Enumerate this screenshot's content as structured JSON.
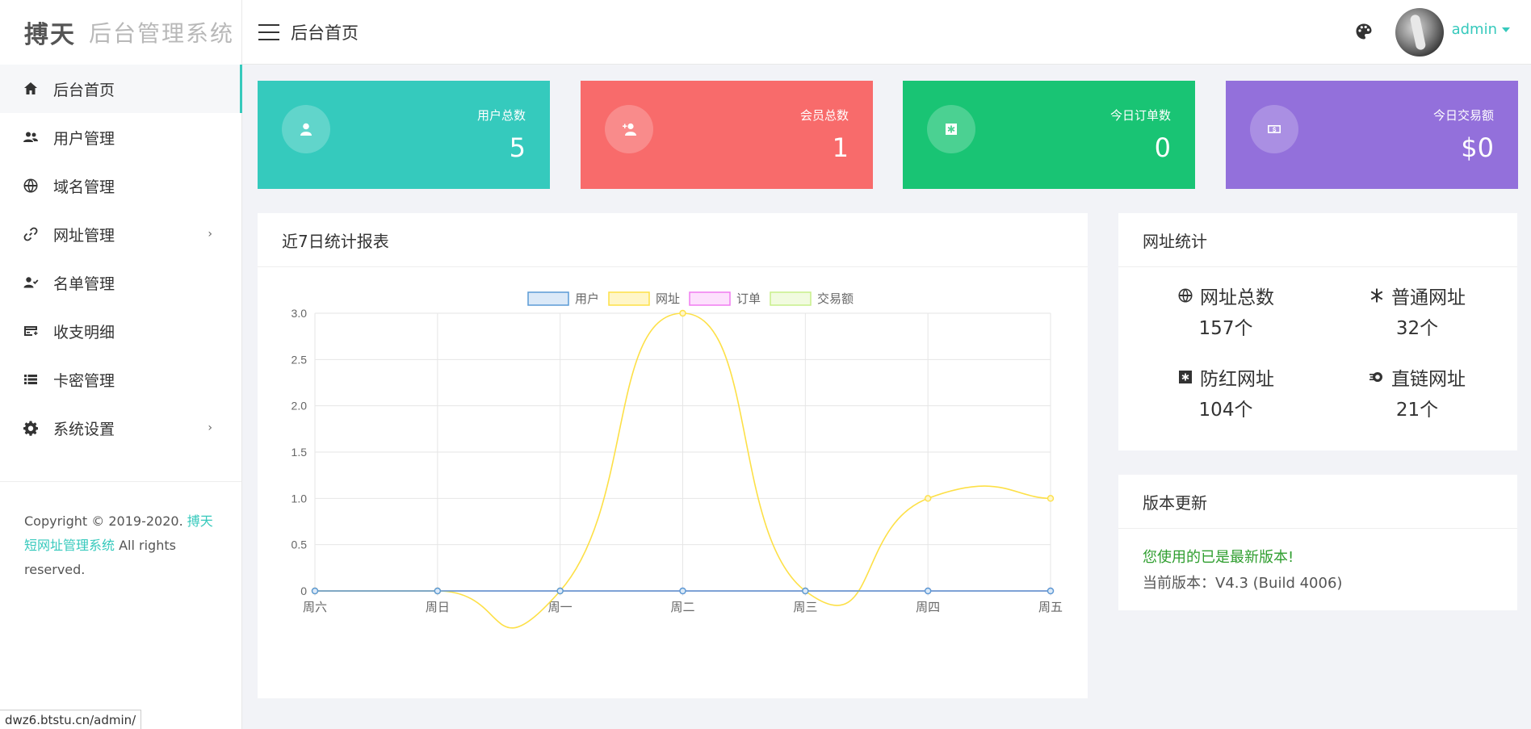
{
  "app": {
    "logo_main": "搏天",
    "logo_sub": "后台管理系统"
  },
  "sidebar": {
    "items": [
      {
        "label": "后台首页",
        "icon": "home-icon",
        "active": true
      },
      {
        "label": "用户管理",
        "icon": "users-icon"
      },
      {
        "label": "域名管理",
        "icon": "globe-icon"
      },
      {
        "label": "网址管理",
        "icon": "link-icon",
        "has_submenu": true
      },
      {
        "label": "名单管理",
        "icon": "user-check-icon"
      },
      {
        "label": "收支明细",
        "icon": "credit-card-icon"
      },
      {
        "label": "卡密管理",
        "icon": "list-icon"
      },
      {
        "label": "系统设置",
        "icon": "gear-icon",
        "has_submenu": true
      }
    ],
    "arrow": "›",
    "copyright_prefix": "Copyright © 2019-2020. ",
    "copyright_link": "搏天短网址管理系统",
    "copyright_suffix": " All rights reserved."
  },
  "header": {
    "title": "后台首页",
    "username": "admin"
  },
  "stats": [
    {
      "label": "用户总数",
      "value": "5",
      "color": "#35cabd",
      "icon": "user-icon"
    },
    {
      "label": "会员总数",
      "value": "1",
      "color": "#f86b6b",
      "icon": "user-plus-icon"
    },
    {
      "label": "今日订单数",
      "value": "0",
      "color": "#19c474",
      "icon": "asterisk-square-icon"
    },
    {
      "label": "今日交易额",
      "value": "$0",
      "color": "#9370db",
      "icon": "money-icon"
    }
  ],
  "chart_panel": {
    "title": "近7日统计报表"
  },
  "chart_data": {
    "type": "line",
    "categories": [
      "周六",
      "周日",
      "周一",
      "周二",
      "周三",
      "周四",
      "周五"
    ],
    "series": [
      {
        "name": "用户",
        "values": [
          0,
          0,
          0,
          0,
          0,
          0,
          0
        ],
        "color": "#5b9bd5",
        "fill": "#dbe9f8"
      },
      {
        "name": "网址",
        "values": [
          0,
          0,
          0,
          3,
          0,
          1,
          1
        ],
        "color": "#fde047",
        "fill": "#fff6c8"
      },
      {
        "name": "订单",
        "values": [
          0,
          0,
          0,
          0,
          0,
          0,
          0
        ],
        "color": "#f07cf0",
        "fill": "#fde0fd"
      },
      {
        "name": "交易额",
        "values": [
          0,
          0,
          0,
          0,
          0,
          0,
          0
        ],
        "color": "#c7ef8a",
        "fill": "#f1fbdf"
      }
    ],
    "yticks": [
      "0",
      "0.5",
      "1.0",
      "1.5",
      "2.0",
      "2.5",
      "3.0"
    ],
    "ylim": [
      0,
      3
    ],
    "grid": true,
    "legend_position": "top-center"
  },
  "url_stats": {
    "title": "网址统计",
    "items": [
      {
        "label": "网址总数",
        "value": "157个",
        "icon": "globe-icon"
      },
      {
        "label": "普通网址",
        "value": "32个",
        "icon": "asterisk-icon"
      },
      {
        "label": "防红网址",
        "value": "104个",
        "icon": "asterisk-square-icon"
      },
      {
        "label": "直链网址",
        "value": "21个",
        "icon": "rocket-icon"
      }
    ]
  },
  "version": {
    "title": "版本更新",
    "latest": "您使用的已是最新版本!",
    "current": "当前版本：V4.3 (Build 4006)"
  },
  "statusbar": {
    "url": "dwz6.btstu.cn/admin/"
  }
}
